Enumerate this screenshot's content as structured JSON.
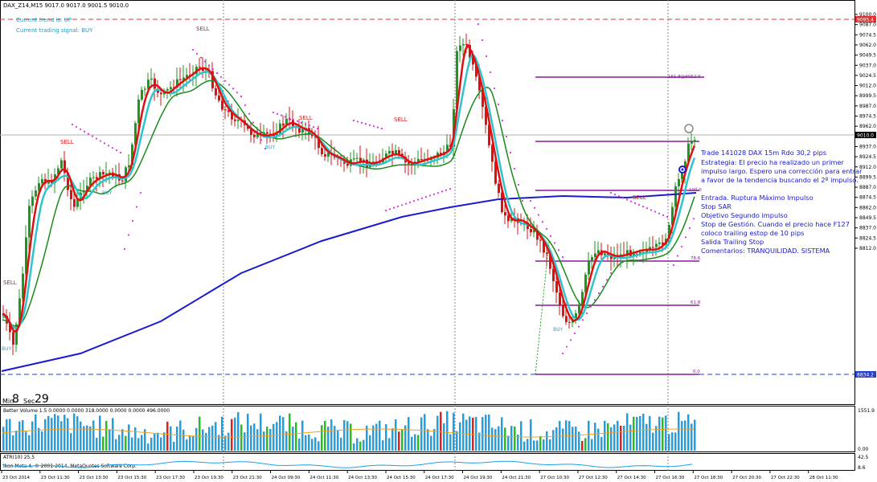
{
  "main_panel": {
    "symbol_header": "DAX_Z14,M15  9017.0 9017.0 9001.5 9010.0",
    "trend_label": "Current trend is: UP",
    "signal_label": "Current trading signal: BUY",
    "countdown_min_label": "Min",
    "countdown_min_value": "8",
    "countdown_sec_label": "Sec",
    "countdown_sec_value": "29",
    "signal_sell": "SELL",
    "signal_buy": "BUY",
    "price_ticks": [
      "9100.0",
      "9087.0",
      "9074.5",
      "9062.0",
      "9049.5",
      "9037.0",
      "9024.5",
      "9012.0",
      "8999.5",
      "8987.0",
      "8974.5",
      "8962.0",
      "8949.5",
      "8937.0",
      "8924.5",
      "8912.0",
      "8899.5",
      "8887.0",
      "8874.5",
      "8862.0",
      "8849.5",
      "8837.0",
      "8824.5",
      "8812.0"
    ],
    "current_price_tag": "9010.0",
    "upper_level_tag": "9095.4",
    "lower_level_tag": "8834.2",
    "fibo_labels": [
      "161.8@9052.0",
      "100.0",
      "78.6",
      "61.8",
      "0.0"
    ]
  },
  "annotation": {
    "title": "Trade 141028 DAX 15m Rdo 30,2 pips",
    "strategy_lines": [
      "Estrategia: El precio ha realizado un primer",
      "impulso largo. Espero una corrección para entrar",
      "a favor de la tendencia buscando el 2º impulso."
    ],
    "rule_lines": [
      "Entrada. Ruptura Máximo Impulso",
      "Stop SAR",
      "Objetivo Segundo impulso",
      "Stop de Gestión. Cuando el precio hace F127",
      "coloco trailing estop de 10 pips",
      "Salida Trailing Stop",
      "Comentarios: TRANQUILIDAD. SISTEMA"
    ]
  },
  "volume_panel": {
    "header": "Better Volume 1.5 0.0000 0.0000 318.0000 0.0000 0.0000 496.0000",
    "tick_top": "1551.9",
    "tick_bottom": "0.00"
  },
  "atr_panel": {
    "header": "ATR(10) 25.5",
    "copyright": "Ikon Meta 4, © 2001-2014, MetaQuotes Software Corp.",
    "tick_top": "42.5",
    "tick_bottom": "8.6"
  },
  "time_axis": [
    "23 Oct 2014",
    "23 Oct 11:30",
    "23 Oct 13:30",
    "23 Oct 15:30",
    "23 Oct 17:30",
    "23 Oct 19:30",
    "23 Oct 21:30",
    "24 Oct 09:30",
    "24 Oct 11:30",
    "24 Oct 13:30",
    "24 Oct 15:30",
    "24 Oct 17:30",
    "24 Oct 19:30",
    "24 Oct 21:30",
    "27 Oct 10:30",
    "27 Oct 12:30",
    "27 Oct 14:30",
    "27 Oct 16:30",
    "27 Oct 18:30",
    "27 Oct 20:30",
    "27 Oct 22:30",
    "28 Oct 11:30"
  ],
  "colors": {
    "bull_candle": "#1a9a1a",
    "bear_candle": "#e01010",
    "ma_fast": "#e01010",
    "ma_signal": "#2ec4cf",
    "ma_slow": "#1a8a1a",
    "ma_long": "#1a1ad0",
    "sar": "#e030e0",
    "fibo": "#8a1a9a",
    "annotation_text": "#1a1ad0",
    "level_line": "#e03030",
    "lower_line": "#2040d0",
    "volume_blue": "#1ea0e8",
    "volume_green": "#20c020",
    "volume_red": "#e02020",
    "volume_ma": "#f0a020",
    "atr_line": "#1ea0e8"
  }
}
